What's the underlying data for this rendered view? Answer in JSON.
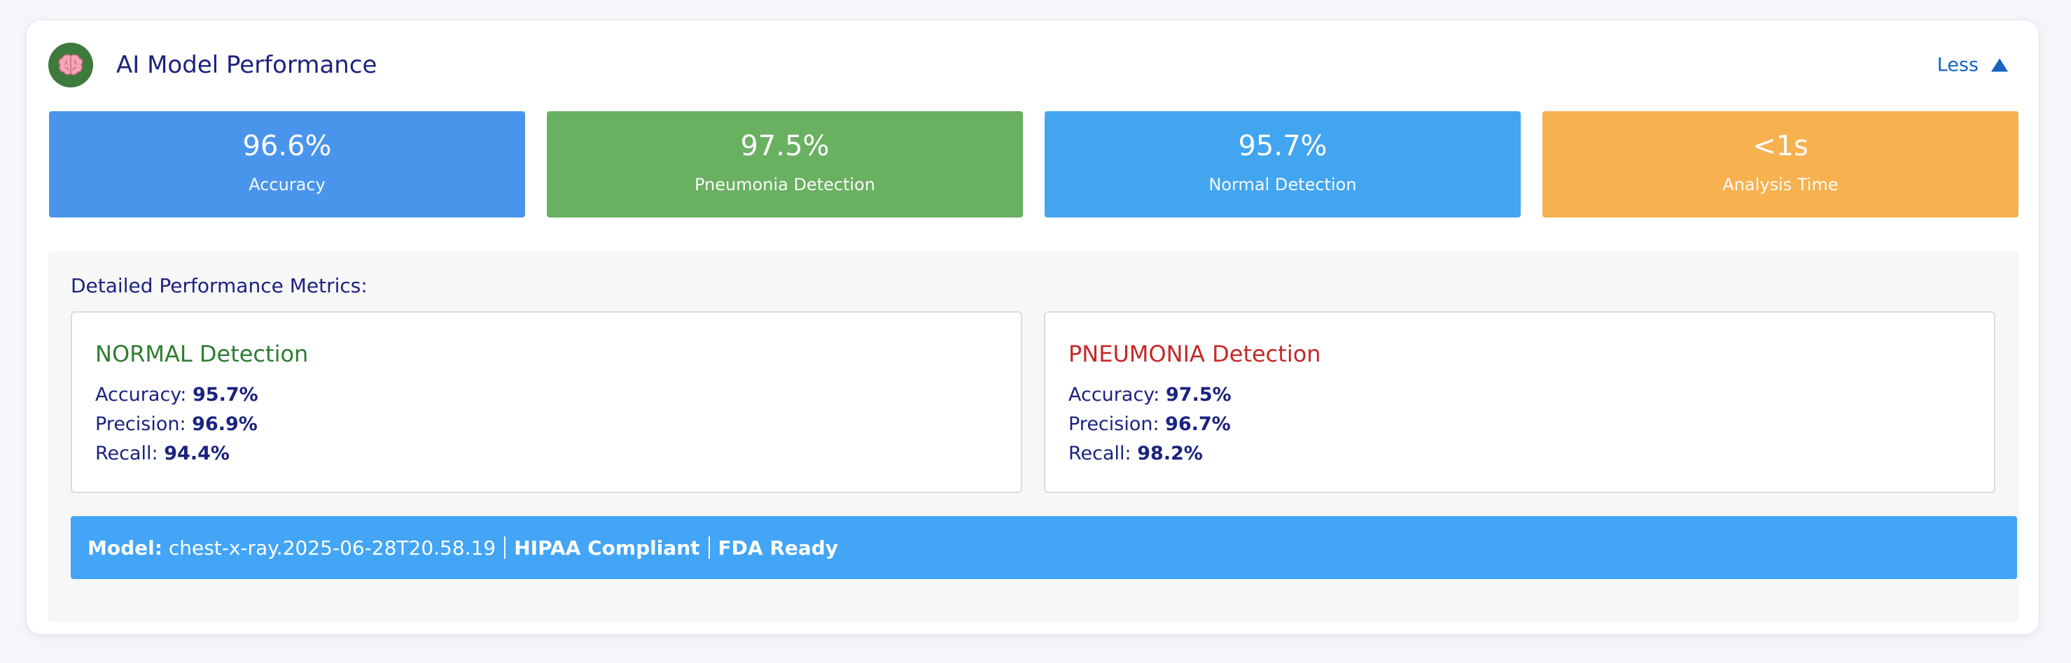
{
  "header": {
    "icon": "brain-icon",
    "title": "AI Model Performance",
    "toggle_label": "Less",
    "toggle_icon": "triangle-up-icon"
  },
  "stats": [
    {
      "value": "96.6%",
      "label": "Accuracy",
      "color": "#4a95ec"
    },
    {
      "value": "97.5%",
      "label": "Pneumonia Detection",
      "color": "#6ab061"
    },
    {
      "value": "95.7%",
      "label": "Normal Detection",
      "color": "#42a5f0"
    },
    {
      "value": "<1s",
      "label": "Analysis Time",
      "color": "#f7b14f"
    }
  ],
  "details": {
    "heading": "Detailed Performance Metrics:",
    "normal": {
      "title": "NORMAL Detection",
      "title_color": "#2e7d32",
      "accuracy_label": "Accuracy:",
      "accuracy": "95.7%",
      "precision_label": "Precision:",
      "precision": "96.9%",
      "recall_label": "Recall:",
      "recall": "94.4%"
    },
    "pneumonia": {
      "title": "PNEUMONIA Detection",
      "title_color": "#c62828",
      "accuracy_label": "Accuracy:",
      "accuracy": "97.5%",
      "precision_label": "Precision:",
      "precision": "96.7%",
      "recall_label": "Recall:",
      "recall": "98.2%"
    }
  },
  "model_bar": {
    "model_label": "Model:",
    "model_name": "chest-x-ray.2025-06-28T20.58.19",
    "hipaa": "HIPAA Compliant",
    "fda": "FDA Ready"
  }
}
